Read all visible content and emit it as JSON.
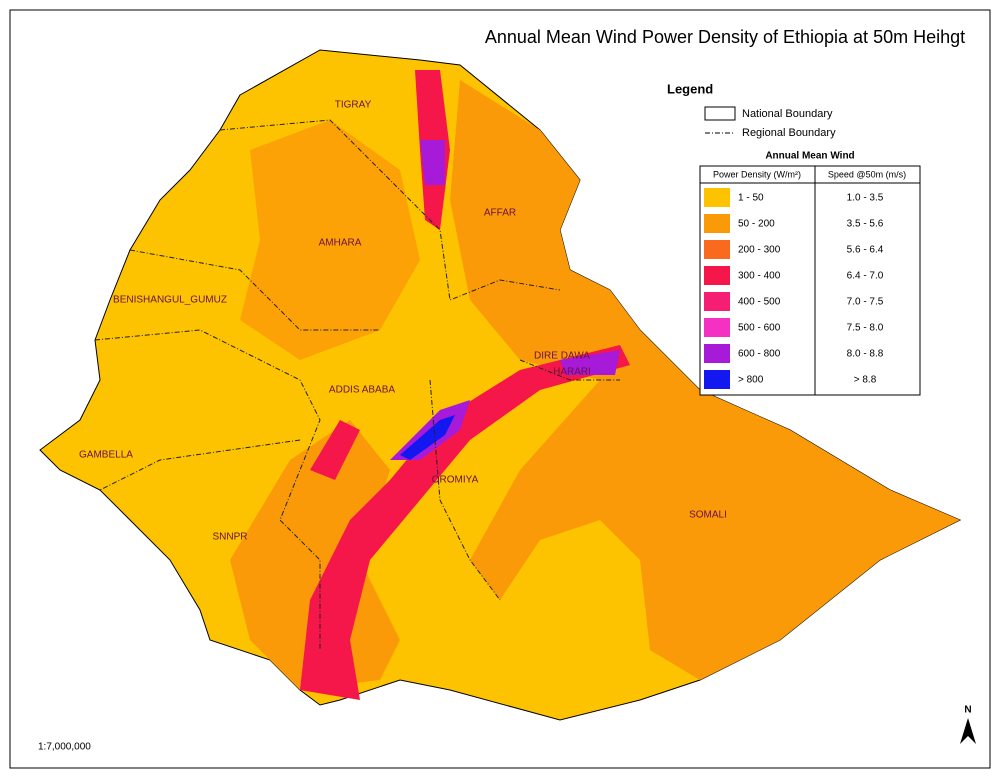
{
  "title": "Annual Mean Wind Power Density of Ethiopia at 50m Heihgt",
  "legend": {
    "title": "Legend",
    "boundaries": [
      "National Boundary",
      "Regional Boundary"
    ],
    "table": {
      "title": "Annual Mean Wind",
      "headers": [
        "Power Density (W/m²)",
        "Speed @50m (m/s)"
      ],
      "rows": [
        {
          "density": "1 - 50",
          "speed": "1.0 - 3.5",
          "color": "#fdc300"
        },
        {
          "density": "50 - 200",
          "speed": "3.5 - 5.6",
          "color": "#fb9a08"
        },
        {
          "density": "200 - 300",
          "speed": "5.6 - 6.4",
          "color": "#fa6a1e"
        },
        {
          "density": "300 - 400",
          "speed": "6.4 - 7.0",
          "color": "#f5164a"
        },
        {
          "density": "400 - 500",
          "speed": "7.0 - 7.5",
          "color": "#f51e72"
        },
        {
          "density": "500 - 600",
          "speed": "7.5 - 8.0",
          "color": "#f531c4"
        },
        {
          "density": "600 - 800",
          "speed": "8.0 - 8.8",
          "color": "#a61ad8"
        },
        {
          "density": "> 800",
          "speed": "> 8.8",
          "color": "#1418f0"
        }
      ]
    }
  },
  "regions": [
    "TIGRAY",
    "AFFAR",
    "AMHARA",
    "BENISHANGUL_GUMUZ",
    "DIRE DAWA",
    "HARARI",
    "ADDIS ABABA",
    "GAMBELLA",
    "OROMIYA",
    "SOMALI",
    "SNNPR"
  ],
  "scale": "1:7,000,000",
  "north": "N"
}
